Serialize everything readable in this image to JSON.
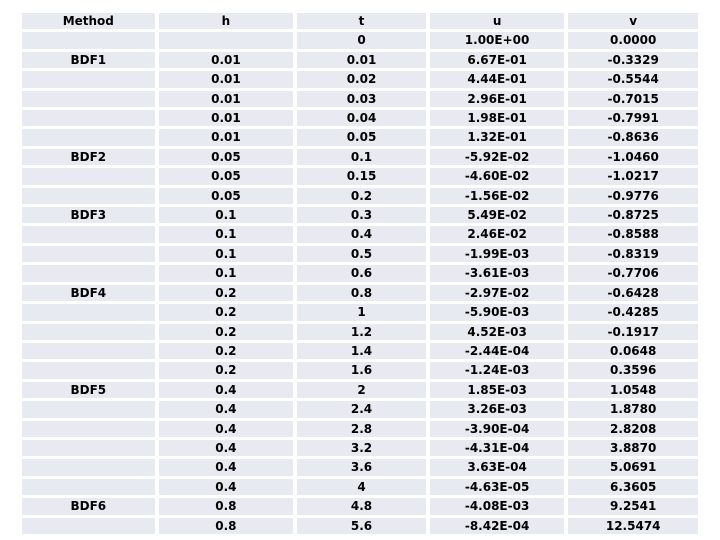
{
  "chart_data": {
    "type": "table",
    "columns": [
      "Method",
      "h",
      "t",
      "u",
      "v"
    ],
    "rows": [
      [
        "",
        "",
        "0",
        "1.00E+00",
        "0.0000"
      ],
      [
        "BDF1",
        "0.01",
        "0.01",
        "6.67E-01",
        "-0.3329"
      ],
      [
        "",
        "0.01",
        "0.02",
        "4.44E-01",
        "-0.5544"
      ],
      [
        "",
        "0.01",
        "0.03",
        "2.96E-01",
        "-0.7015"
      ],
      [
        "",
        "0.01",
        "0.04",
        "1.98E-01",
        "-0.7991"
      ],
      [
        "",
        "0.01",
        "0.05",
        "1.32E-01",
        "-0.8636"
      ],
      [
        "BDF2",
        "0.05",
        "0.1",
        "-5.92E-02",
        "-1.0460"
      ],
      [
        "",
        "0.05",
        "0.15",
        "-4.60E-02",
        "-1.0217"
      ],
      [
        "",
        "0.05",
        "0.2",
        "-1.56E-02",
        "-0.9776"
      ],
      [
        "BDF3",
        "0.1",
        "0.3",
        "5.49E-02",
        "-0.8725"
      ],
      [
        "",
        "0.1",
        "0.4",
        "2.46E-02",
        "-0.8588"
      ],
      [
        "",
        "0.1",
        "0.5",
        "-1.99E-03",
        "-0.8319"
      ],
      [
        "",
        "0.1",
        "0.6",
        "-3.61E-03",
        "-0.7706"
      ],
      [
        "BDF4",
        "0.2",
        "0.8",
        "-2.97E-02",
        "-0.6428"
      ],
      [
        "",
        "0.2",
        "1",
        "-5.90E-03",
        "-0.4285"
      ],
      [
        "",
        "0.2",
        "1.2",
        "4.52E-03",
        "-0.1917"
      ],
      [
        "",
        "0.2",
        "1.4",
        "-2.44E-04",
        "0.0648"
      ],
      [
        "",
        "0.2",
        "1.6",
        "-1.24E-03",
        "0.3596"
      ],
      [
        "BDF5",
        "0.4",
        "2",
        "1.85E-03",
        "1.0548"
      ],
      [
        "",
        "0.4",
        "2.4",
        "3.26E-03",
        "1.8780"
      ],
      [
        "",
        "0.4",
        "2.8",
        "-3.90E-04",
        "2.8208"
      ],
      [
        "",
        "0.4",
        "3.2",
        "-4.31E-04",
        "3.8870"
      ],
      [
        "",
        "0.4",
        "3.6",
        "3.63E-04",
        "5.0691"
      ],
      [
        "",
        "0.4",
        "4",
        "-4.63E-05",
        "6.3605"
      ],
      [
        "BDF6",
        "0.8",
        "4.8",
        "-4.08E-03",
        "9.2541"
      ],
      [
        "",
        "0.8",
        "5.6",
        "-8.42E-04",
        "12.5474"
      ]
    ]
  },
  "colors": {
    "row_band": "#E8EAF1",
    "background": "#FFFFFF",
    "text": "#000000"
  }
}
